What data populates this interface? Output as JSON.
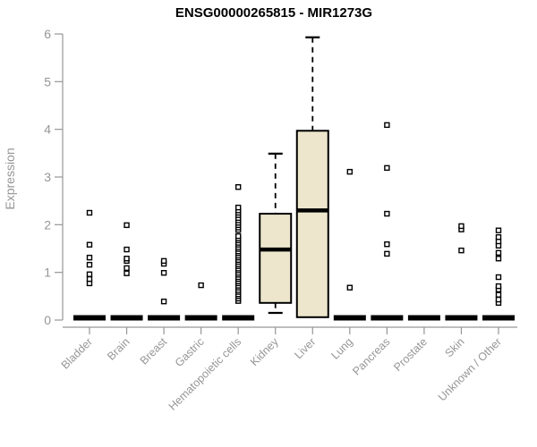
{
  "chart_data": {
    "type": "boxplot",
    "title": "ENSG00000265815 - MIR1273G",
    "xlabel": "",
    "ylabel": "Expression",
    "ylim": [
      0,
      6
    ],
    "yticks": [
      0,
      1,
      2,
      3,
      4,
      5,
      6
    ],
    "grid": false,
    "legend": "none",
    "colors": {
      "box_fill": "#EDE6CD",
      "box_stroke": "#000000",
      "axis": "#969696",
      "tick_label": "#969696",
      "title": "#000000",
      "background": "#FFFFFF"
    },
    "categories": [
      "Bladder",
      "Brain",
      "Breast",
      "Gastric",
      "Hematopoietic cells",
      "Kidney",
      "Liver",
      "Lung",
      "Pancreas",
      "Prostate",
      "Skin",
      "Unknown / Other"
    ],
    "boxes": [
      {
        "category": "Bladder",
        "q1": 0,
        "median": 0,
        "q3": 0,
        "whisker_low": 0,
        "whisker_high": 0,
        "outliers": [
          0.77,
          0.86,
          0.96,
          1.16,
          1.31,
          1.58,
          2.25
        ]
      },
      {
        "category": "Brain",
        "q1": 0,
        "median": 0,
        "q3": 0,
        "whisker_low": 0,
        "whisker_high": 0,
        "outliers": [
          0.98,
          1.09,
          1.24,
          1.29,
          1.48,
          1.99
        ]
      },
      {
        "category": "Breast",
        "q1": 0,
        "median": 0,
        "q3": 0,
        "whisker_low": 0,
        "whisker_high": 0,
        "outliers": [
          0.39,
          0.99,
          1.18,
          1.24
        ]
      },
      {
        "category": "Gastric",
        "q1": 0,
        "median": 0,
        "q3": 0,
        "whisker_low": 0,
        "whisker_high": 0,
        "outliers": [
          0.73
        ]
      },
      {
        "category": "Hematopoietic cells",
        "q1": 0,
        "median": 0,
        "q3": 0,
        "whisker_low": 0,
        "whisker_high": 0,
        "outliers": [
          0.4,
          0.45,
          0.5,
          0.54,
          0.59,
          0.63,
          0.68,
          0.72,
          0.77,
          0.81,
          0.86,
          0.9,
          0.95,
          0.99,
          1.04,
          1.08,
          1.13,
          1.17,
          1.22,
          1.26,
          1.31,
          1.35,
          1.4,
          1.44,
          1.49,
          1.53,
          1.58,
          1.62,
          1.67,
          1.71,
          1.76,
          1.89,
          1.94,
          1.99,
          2.04,
          2.09,
          2.14,
          2.2,
          2.25,
          2.3,
          2.36,
          2.79
        ]
      },
      {
        "category": "Kidney",
        "q1": 0.36,
        "median": 1.48,
        "q3": 2.23,
        "whisker_low": 0.15,
        "whisker_high": 3.49,
        "outliers": []
      },
      {
        "category": "Liver",
        "q1": 0.06,
        "median": 2.3,
        "q3": 3.97,
        "whisker_low": 0.06,
        "whisker_high": 5.93,
        "outliers": []
      },
      {
        "category": "Lung",
        "q1": 0,
        "median": 0,
        "q3": 0,
        "whisker_low": 0,
        "whisker_high": 0,
        "outliers": [
          0.68,
          3.11
        ]
      },
      {
        "category": "Pancreas",
        "q1": 0,
        "median": 0,
        "q3": 0,
        "whisker_low": 0,
        "whisker_high": 0,
        "outliers": [
          1.39,
          1.59,
          2.23,
          3.19,
          4.09
        ]
      },
      {
        "category": "Prostate",
        "q1": 0,
        "median": 0,
        "q3": 0,
        "whisker_low": 0,
        "whisker_high": 0,
        "outliers": []
      },
      {
        "category": "Skin",
        "q1": 0,
        "median": 0,
        "q3": 0,
        "whisker_low": 0,
        "whisker_high": 0,
        "outliers": [
          1.46,
          1.9,
          1.97
        ]
      },
      {
        "category": "Unknown / Other",
        "q1": 0,
        "median": 0,
        "q3": 0,
        "whisker_low": 0,
        "whisker_high": 0,
        "outliers": [
          0.36,
          0.43,
          0.53,
          0.64,
          0.71,
          0.9,
          1.29,
          1.41,
          1.56,
          1.65,
          1.74,
          1.88
        ]
      }
    ]
  }
}
